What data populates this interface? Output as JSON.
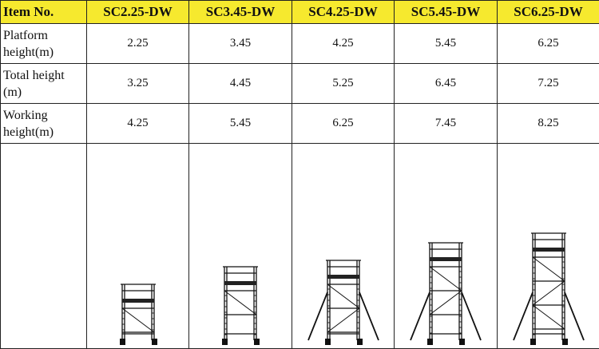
{
  "table": {
    "header": [
      "Item No.",
      "SC2.25-DW",
      "SC3.45-DW",
      "SC4.25-DW",
      "SC5.45-DW",
      "SC6.25-DW"
    ],
    "rows": [
      [
        "Platform height(m)",
        "2.25",
        "3.45",
        "4.25",
        "5.45",
        "6.25"
      ],
      [
        "Total height (m)",
        "3.25",
        "4.45",
        "5.25",
        "6.45",
        "7.25"
      ],
      [
        "Working height(m)",
        "4.25",
        "5.45",
        "6.25",
        "7.45",
        "8.25"
      ]
    ]
  }
}
